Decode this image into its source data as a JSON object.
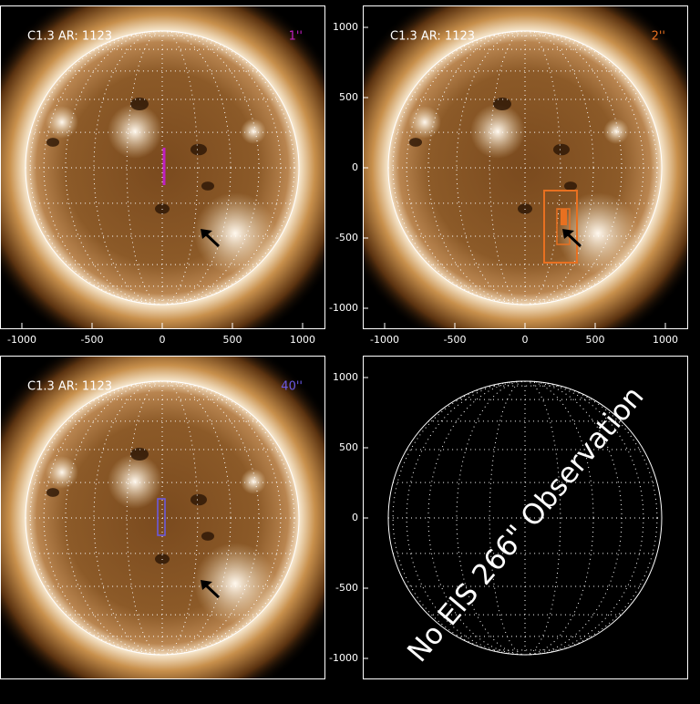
{
  "panels": [
    {
      "title": "C1.3 AR: 1123",
      "slit": "1''",
      "slit_color": "#c020c0",
      "image": true,
      "xticks": [
        -1000,
        -500,
        0,
        500,
        1000
      ]
    },
    {
      "title": "C1.3 AR: 1123",
      "slit": "2''",
      "slit_color": "#e87020",
      "image": true,
      "xticks": [
        -1000,
        -500,
        0,
        500,
        1000
      ],
      "yticks": [
        1000,
        500,
        0,
        -500,
        -1000
      ]
    },
    {
      "title": "C1.3 AR: 1123",
      "slit": "40''",
      "slit_color": "#6a5ae8",
      "image": true
    },
    {
      "image": false,
      "yticks": [
        1000,
        500,
        0,
        -500,
        -1000
      ],
      "annotation": "No EIS 266\" Observation"
    }
  ]
}
